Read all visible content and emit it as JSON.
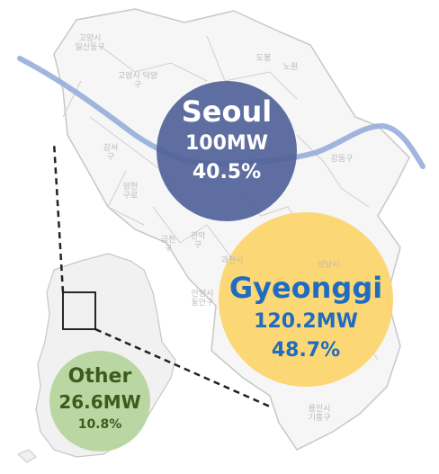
{
  "regions": [
    {
      "name": "Seoul",
      "capacity": "100MW",
      "share": "40.5%",
      "share_value": 40.5,
      "color": "#4f5f97",
      "text_color": "#ffffff"
    },
    {
      "name": "Gyeonggi",
      "capacity": "120.2MW",
      "share": "48.7%",
      "share_value": 48.7,
      "color": "#fbd46a",
      "text_color": "#1f6cc0"
    },
    {
      "name": "Other",
      "capacity": "26.6MW",
      "share": "10.8%",
      "share_value": 10.8,
      "color": "#b5d59c",
      "text_color": "#3e5a1d"
    }
  ],
  "map_labels": [
    {
      "line1": "고양시",
      "line2": "일산동구"
    },
    {
      "line1": "고양시 덕양",
      "line2": "구"
    },
    {
      "line1": "도봉",
      "line2": ""
    },
    {
      "line1": "노원",
      "line2": ""
    },
    {
      "line1": "강서",
      "line2": "구"
    },
    {
      "line1": "양천",
      "line2": "구로"
    },
    {
      "line1": "금천",
      "line2": "구"
    },
    {
      "line1": "관악",
      "line2": "구"
    },
    {
      "line1": "과천시",
      "line2": ""
    },
    {
      "line1": "안양시",
      "line2": "동안구"
    },
    {
      "line1": "강동구",
      "line2": ""
    },
    {
      "line1": "성남시",
      "line2": ""
    },
    {
      "line1": "용인시",
      "line2": "기흥구"
    }
  ],
  "colors": {
    "river": "#8fa9d8",
    "map_fill": "#f1f1f1",
    "map_border": "#c7c7c7",
    "leader_line": "#222222"
  }
}
